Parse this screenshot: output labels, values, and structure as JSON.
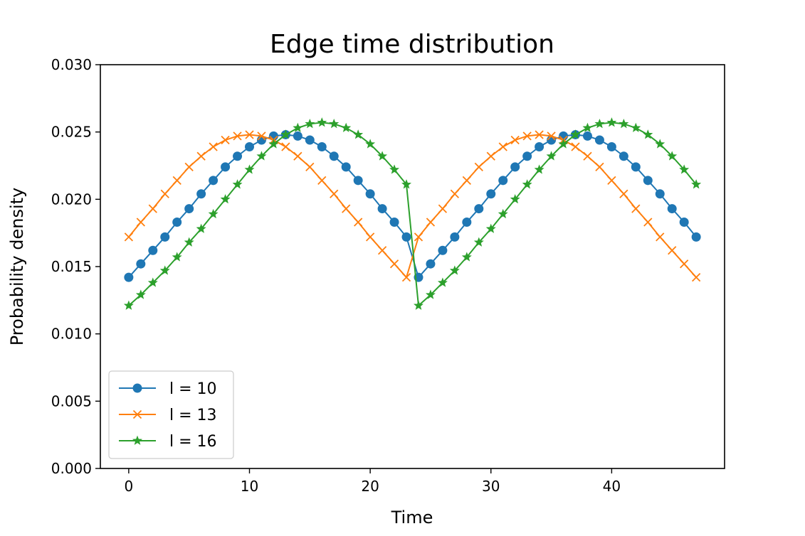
{
  "chart_data": {
    "type": "line",
    "title": "Edge time distribution",
    "xlabel": "Time",
    "ylabel": "Probability density",
    "xlim": [
      -2.35,
      49.35
    ],
    "ylim": [
      0,
      0.03
    ],
    "xticks": [
      0,
      10,
      20,
      30,
      40
    ],
    "xtick_labels": [
      "0",
      "10",
      "20",
      "30",
      "40"
    ],
    "yticks": [
      0,
      0.005,
      0.01,
      0.015,
      0.02,
      0.025,
      0.03
    ],
    "ytick_labels": [
      "0.000",
      "0.005",
      "0.010",
      "0.015",
      "0.020",
      "0.025",
      "0.030"
    ],
    "grid": false,
    "legend_position": "lower-left",
    "x": [
      0,
      1,
      2,
      3,
      4,
      5,
      6,
      7,
      8,
      9,
      10,
      11,
      12,
      13,
      14,
      15,
      16,
      17,
      18,
      19,
      20,
      21,
      22,
      23,
      24,
      25,
      26,
      27,
      28,
      29,
      30,
      31,
      32,
      33,
      34,
      35,
      36,
      37,
      38,
      39,
      40,
      41,
      42,
      43,
      44,
      45,
      46,
      47
    ],
    "series": [
      {
        "name": "l = 10",
        "color": "#1f77b4",
        "marker": "circle",
        "values": [
          0.0142,
          0.0152,
          0.0162,
          0.0172,
          0.0183,
          0.0193,
          0.0204,
          0.0214,
          0.0224,
          0.0232,
          0.0239,
          0.0244,
          0.0247,
          0.0248,
          0.0247,
          0.0244,
          0.0239,
          0.0232,
          0.0224,
          0.0214,
          0.0204,
          0.0193,
          0.0183,
          0.0172,
          0.0142,
          0.0152,
          0.0162,
          0.0172,
          0.0183,
          0.0193,
          0.0204,
          0.0214,
          0.0224,
          0.0232,
          0.0239,
          0.0244,
          0.0247,
          0.0248,
          0.0247,
          0.0244,
          0.0239,
          0.0232,
          0.0224,
          0.0214,
          0.0204,
          0.0193,
          0.0183,
          0.0172
        ]
      },
      {
        "name": "l = 13",
        "color": "#ff7f0e",
        "marker": "x",
        "values": [
          0.0172,
          0.0183,
          0.0193,
          0.0204,
          0.0214,
          0.0224,
          0.0232,
          0.0239,
          0.0244,
          0.0247,
          0.0248,
          0.0247,
          0.0244,
          0.0239,
          0.0232,
          0.0224,
          0.0214,
          0.0204,
          0.0193,
          0.0183,
          0.0172,
          0.0162,
          0.0152,
          0.0142,
          0.0172,
          0.0183,
          0.0193,
          0.0204,
          0.0214,
          0.0224,
          0.0232,
          0.0239,
          0.0244,
          0.0247,
          0.0248,
          0.0247,
          0.0244,
          0.0239,
          0.0232,
          0.0224,
          0.0214,
          0.0204,
          0.0193,
          0.0183,
          0.0172,
          0.0162,
          0.0152,
          0.0142
        ]
      },
      {
        "name": "l = 16",
        "color": "#2ca02c",
        "marker": "star",
        "values": [
          0.0121,
          0.0129,
          0.0138,
          0.0147,
          0.0157,
          0.0168,
          0.0178,
          0.0189,
          0.02,
          0.0211,
          0.0222,
          0.0232,
          0.0241,
          0.0248,
          0.0253,
          0.0256,
          0.0257,
          0.0256,
          0.0253,
          0.0248,
          0.0241,
          0.0232,
          0.0222,
          0.0211,
          0.0121,
          0.0129,
          0.0138,
          0.0147,
          0.0157,
          0.0168,
          0.0178,
          0.0189,
          0.02,
          0.0211,
          0.0222,
          0.0232,
          0.0241,
          0.0248,
          0.0253,
          0.0256,
          0.0257,
          0.0256,
          0.0253,
          0.0248,
          0.0241,
          0.0232,
          0.0222,
          0.0211
        ]
      }
    ]
  }
}
